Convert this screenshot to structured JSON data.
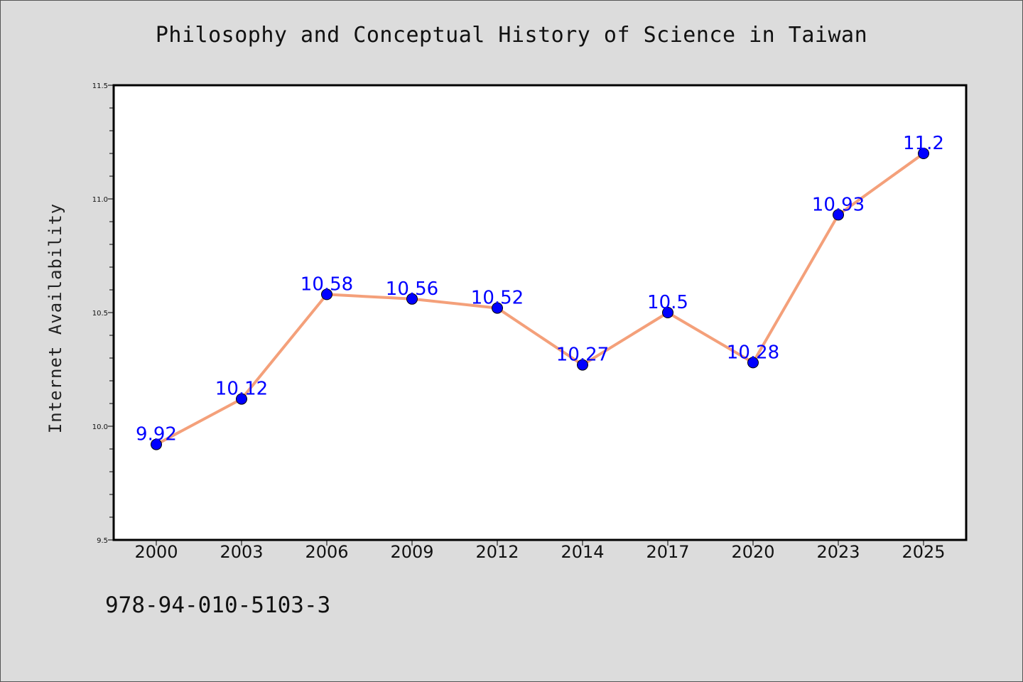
{
  "chart_data": {
    "type": "line",
    "title": "Philosophy and Conceptual History of Science in Taiwan",
    "xlabel": "",
    "ylabel": "Internet Availability",
    "categories": [
      "2000",
      "2003",
      "2006",
      "2009",
      "2012",
      "2014",
      "2017",
      "2020",
      "2023",
      "2025"
    ],
    "series": [
      {
        "values": [
          9.92,
          10.12,
          10.58,
          10.56,
          10.52,
          10.27,
          10.5,
          10.28,
          10.93,
          11.2
        ],
        "data_labels": [
          "9.92",
          "10.12",
          "10.58",
          "10.56",
          "10.52",
          "10.27",
          "10.5",
          "10.28",
          "10.93",
          "11.2"
        ]
      }
    ],
    "ylim": [
      9.5,
      11.5
    ],
    "yticks": [
      9.5,
      10.0,
      10.5,
      11.0,
      11.5
    ],
    "ytick_labels": [
      "9.5",
      "10.0",
      "10.5",
      "11.0",
      "11.5"
    ],
    "grid": false,
    "legend": "none",
    "line_color": "#f4a07a",
    "marker_color": "#0000ff",
    "data_label_color": "#0000ff",
    "background_color": "#dcdcdc",
    "plot_background_color": "#ffffff"
  },
  "caption": "978-94-010-5103-3"
}
